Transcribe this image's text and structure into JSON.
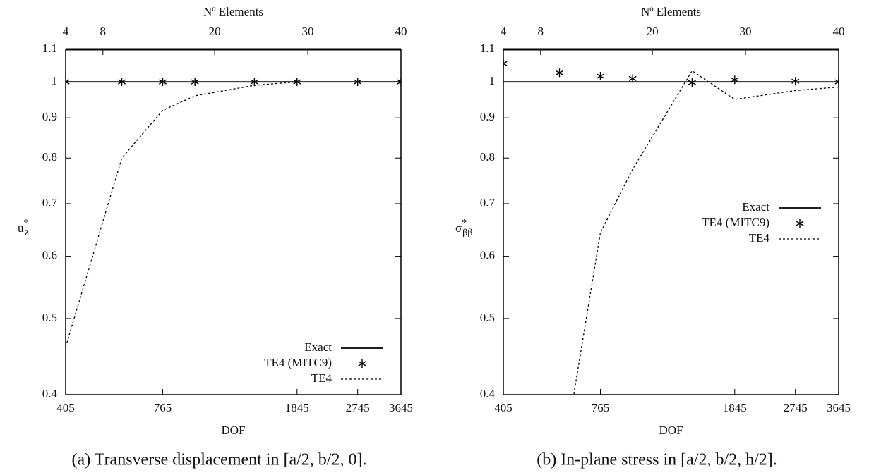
{
  "chart_data": [
    {
      "type": "line",
      "caption": "(a) Transverse displacement in [a/2, b/2, 0].",
      "xlabel": "DOF",
      "x2label": "Nº Elements",
      "ylabel": {
        "base": "u",
        "sup": "*",
        "sub": "z"
      },
      "xscale": "log",
      "yscale": "log",
      "xlim": [
        405,
        3645
      ],
      "xticks": [
        405,
        765,
        1845,
        2745,
        3645
      ],
      "x2lim": [
        4,
        40
      ],
      "x2ticks": [
        4,
        8,
        20,
        30,
        40
      ],
      "ylim": [
        0.4,
        1.1
      ],
      "yticks": [
        0.4,
        0.5,
        0.6,
        0.7,
        0.8,
        0.9,
        1,
        1.1
      ],
      "legend": "lower right",
      "x": [
        405,
        585,
        765,
        945,
        1395,
        1845,
        2745,
        3645
      ],
      "series": [
        {
          "name": "Exact",
          "color": "#000000",
          "style": "solid",
          "values": [
            1,
            1,
            1,
            1,
            1,
            1,
            1,
            1
          ]
        },
        {
          "name": "TE4 (MITC9)",
          "color": "#000000",
          "style": "points",
          "values": [
            1,
            1,
            1,
            1,
            1,
            1,
            1,
            1
          ]
        },
        {
          "name": "TE4",
          "color": "#000000",
          "style": "dotted",
          "values": [
            0.46,
            0.8,
            0.92,
            0.96,
            0.99,
            1,
            1,
            1
          ]
        }
      ]
    },
    {
      "type": "line",
      "caption": "(b) In-plane stress in [a/2, b/2, h/2].",
      "xlabel": "DOF",
      "x2label": "Nº Elements",
      "ylabel": {
        "base": "σ",
        "sup": "*",
        "sub": "ββ"
      },
      "xscale": "log",
      "yscale": "log",
      "xlim": [
        405,
        3645
      ],
      "xticks": [
        405,
        765,
        1845,
        2745,
        3645
      ],
      "x2lim": [
        4,
        40
      ],
      "x2ticks": [
        4,
        8,
        20,
        30,
        40
      ],
      "ylim": [
        0.4,
        1.1
      ],
      "yticks": [
        0.4,
        0.5,
        0.6,
        0.7,
        0.8,
        0.9,
        1,
        1.1
      ],
      "legend": "right",
      "x": [
        405,
        585,
        765,
        945,
        1395,
        1845,
        2745,
        3645
      ],
      "series": [
        {
          "name": "Exact",
          "color": "#000000",
          "style": "solid",
          "values": [
            1,
            1,
            1,
            1,
            1,
            1,
            1,
            1
          ]
        },
        {
          "name": "TE4 (MITC9)",
          "color": "#000000",
          "style": "points",
          "values": [
            1.055,
            1.027,
            1.017,
            1.01,
            0.998,
            1.006,
            1.002,
            1
          ]
        },
        {
          "name": "TE4",
          "color": "#000000",
          "style": "dotted",
          "values": [
            null,
            0.31,
            0.643,
            0.774,
            1.033,
            0.95,
            0.975,
            0.985
          ]
        }
      ]
    }
  ]
}
